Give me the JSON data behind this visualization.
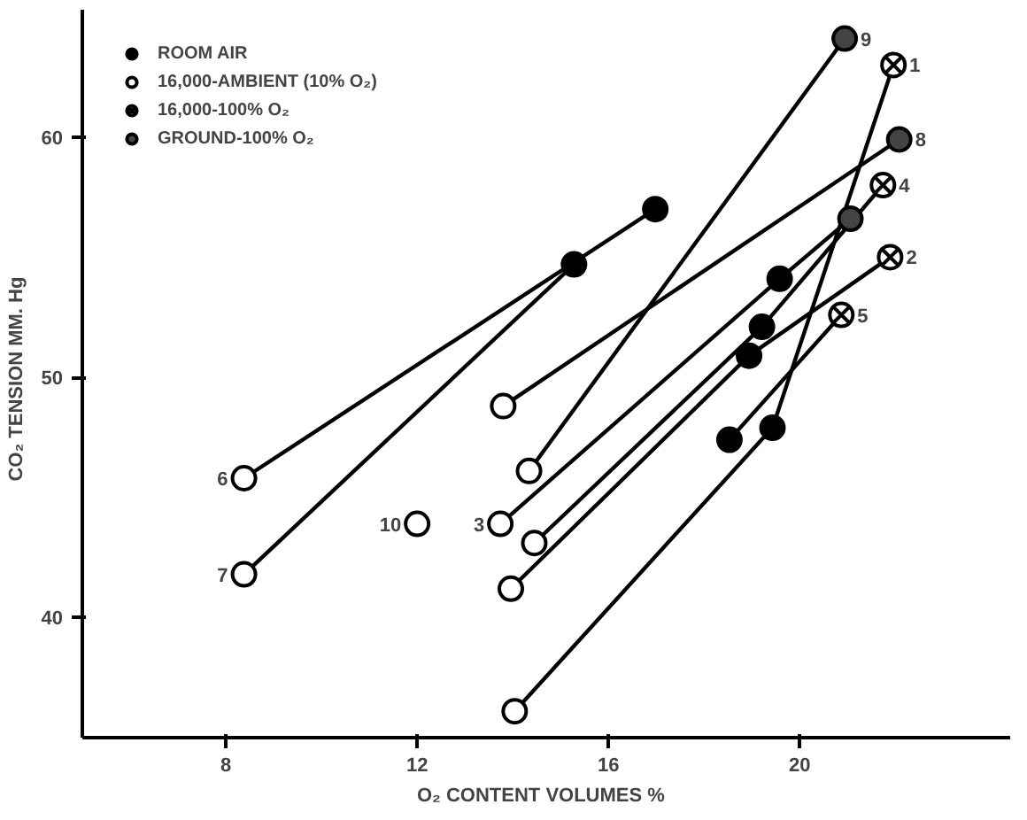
{
  "chart_data": {
    "type": "scatter",
    "xlabel": "O₂ CONTENT   VOLUMES %",
    "ylabel": "CO₂ TENSION   MM. Hg",
    "xlim": [
      5,
      24.4
    ],
    "ylim": [
      35,
      65.3
    ],
    "xticks": [
      8,
      12,
      16,
      20
    ],
    "yticks": [
      40,
      50,
      60
    ],
    "grid": false,
    "legend": "top left",
    "series": [
      {
        "type": "line",
        "color": "#000000",
        "x": [
          8.38,
          16.98
        ],
        "values": [
          45.8,
          57.0
        ]
      },
      {
        "type": "line",
        "color": "#000000",
        "x": [
          8.38,
          15.28
        ],
        "values": [
          41.8,
          54.7
        ]
      },
      {
        "type": "line",
        "color": "#000000",
        "x": [
          14.34,
          20.94
        ],
        "values": [
          46.1,
          64.1
        ]
      },
      {
        "type": "line",
        "color": "#000000",
        "x": [
          13.8,
          22.08
        ],
        "values": [
          48.8,
          59.9
        ]
      },
      {
        "type": "line",
        "color": "#000000",
        "x": [
          13.74,
          19.58,
          21.06
        ],
        "values": [
          43.9,
          54.1,
          56.6
        ]
      },
      {
        "type": "line",
        "color": "#000000",
        "x": [
          14.45,
          19.21,
          21.74
        ],
        "values": [
          43.1,
          52.1,
          58.0
        ]
      },
      {
        "type": "line",
        "color": "#000000",
        "x": [
          13.96,
          18.94,
          21.89
        ],
        "values": [
          41.2,
          50.9,
          55.0
        ]
      },
      {
        "type": "line",
        "color": "#000000",
        "x": [
          14.04,
          19.43,
          21.96
        ],
        "values": [
          36.1,
          47.9,
          63.0
        ]
      },
      {
        "type": "line",
        "color": "#000000",
        "x": [
          18.53,
          20.87
        ],
        "values": [
          47.4,
          52.6
        ]
      },
      {
        "name": "ROOM AIR",
        "marker": "circle",
        "color": "#000000",
        "x": [
          15.28,
          16.98,
          19.58,
          19.21,
          18.94,
          18.53,
          19.43
        ],
        "values": [
          54.7,
          57.0,
          54.1,
          52.1,
          50.9,
          47.4,
          47.9
        ]
      },
      {
        "name": "16,000-AMBIENT (10% O₂)",
        "marker": "circle",
        "color": "#ffffff",
        "x": [
          8.38,
          8.38,
          12.0,
          13.74,
          14.34,
          14.45,
          13.96,
          14.04,
          13.8
        ],
        "values": [
          45.8,
          41.8,
          43.9,
          43.9,
          46.1,
          43.1,
          41.2,
          36.1,
          48.8
        ]
      },
      {
        "name": "16,000-100% O₂",
        "marker": "cross",
        "color": "#000000",
        "x": [
          21.96,
          21.74,
          21.89,
          20.87
        ],
        "values": [
          63.0,
          58.0,
          55.0,
          52.6
        ]
      },
      {
        "name": "GROUND-100% O₂",
        "marker": "circle",
        "color": "#444444",
        "x": [
          20.94,
          22.08,
          21.06
        ],
        "values": [
          64.1,
          59.9,
          56.6
        ]
      }
    ],
    "annotations": [
      {
        "text": "6",
        "x": 8.38,
        "y": 45.8
      },
      {
        "text": "7",
        "x": 8.38,
        "y": 41.8
      },
      {
        "text": "10",
        "x": 12.0,
        "y": 43.9
      },
      {
        "text": "3",
        "x": 13.74,
        "y": 43.9
      },
      {
        "text": "9",
        "x": 20.94,
        "y": 64.1
      },
      {
        "text": "1",
        "x": 21.96,
        "y": 63.0
      },
      {
        "text": "8",
        "x": 22.08,
        "y": 59.9
      },
      {
        "text": "4",
        "x": 21.74,
        "y": 58.0
      },
      {
        "text": "2",
        "x": 21.89,
        "y": 55.0
      },
      {
        "text": "5",
        "x": 20.87,
        "y": 52.6
      }
    ]
  }
}
